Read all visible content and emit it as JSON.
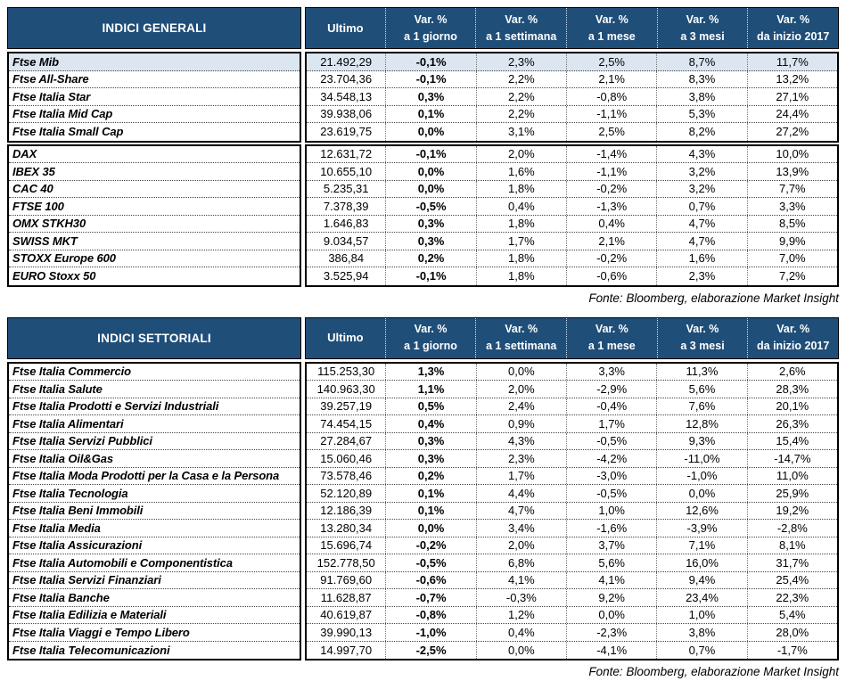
{
  "colors": {
    "header_bg": "#1F4E79",
    "header_text": "#FFFFFF",
    "highlight_row_bg": "#DCE6F1",
    "border": "#000000"
  },
  "columns": [
    {
      "key": "ultimo",
      "line1": "Ultimo",
      "line2": ""
    },
    {
      "key": "var-1-giorno",
      "line1": "Var. %",
      "line2": "a 1 giorno"
    },
    {
      "key": "var-1-settimana",
      "line1": "Var. %",
      "line2": "a 1 settimana"
    },
    {
      "key": "var-1-mese",
      "line1": "Var. %",
      "line2": "a 1 mese"
    },
    {
      "key": "var-3-mesi",
      "line1": "Var. %",
      "line2": "a 3 mesi"
    },
    {
      "key": "var-da-inizio-2017",
      "line1": "Var. %",
      "line2": "da inizio 2017"
    }
  ],
  "tables": [
    {
      "title": "INDICI GENERALI",
      "source": "Fonte: Bloomberg, elaborazione Market Insight",
      "groups": [
        {
          "rows": [
            {
              "label": "Ftse Mib",
              "highlight": true,
              "values": [
                "21.492,29",
                "-0,1%",
                "2,3%",
                "2,5%",
                "8,7%",
                "11,7%"
              ]
            },
            {
              "label": "Ftse All-Share",
              "values": [
                "23.704,36",
                "-0,1%",
                "2,2%",
                "2,1%",
                "8,3%",
                "13,2%"
              ]
            },
            {
              "label": "Ftse Italia Star",
              "values": [
                "34.548,13",
                "0,3%",
                "2,2%",
                "-0,8%",
                "3,8%",
                "27,1%"
              ]
            },
            {
              "label": "Ftse Italia Mid Cap",
              "values": [
                "39.938,06",
                "0,1%",
                "2,2%",
                "-1,1%",
                "5,3%",
                "24,4%"
              ]
            },
            {
              "label": "Ftse Italia Small Cap",
              "values": [
                "23.619,75",
                "0,0%",
                "3,1%",
                "2,5%",
                "8,2%",
                "27,2%"
              ]
            }
          ]
        },
        {
          "rows": [
            {
              "label": "DAX",
              "values": [
                "12.631,72",
                "-0,1%",
                "2,0%",
                "-1,4%",
                "4,3%",
                "10,0%"
              ]
            },
            {
              "label": "IBEX 35",
              "values": [
                "10.655,10",
                "0,0%",
                "1,6%",
                "-1,1%",
                "3,2%",
                "13,9%"
              ]
            },
            {
              "label": "CAC 40",
              "values": [
                "5.235,31",
                "0,0%",
                "1,8%",
                "-0,2%",
                "3,2%",
                "7,7%"
              ]
            },
            {
              "label": "FTSE 100",
              "values": [
                "7.378,39",
                "-0,5%",
                "0,4%",
                "-1,3%",
                "0,7%",
                "3,3%"
              ]
            },
            {
              "label": "OMX STKH30",
              "values": [
                "1.646,83",
                "0,3%",
                "1,8%",
                "0,4%",
                "4,7%",
                "8,5%"
              ]
            },
            {
              "label": "SWISS MKT",
              "values": [
                "9.034,57",
                "0,3%",
                "1,7%",
                "2,1%",
                "4,7%",
                "9,9%"
              ]
            },
            {
              "label": "STOXX Europe 600",
              "values": [
                "386,84",
                "0,2%",
                "1,8%",
                "-0,2%",
                "1,6%",
                "7,0%"
              ]
            },
            {
              "label": "EURO Stoxx 50",
              "values": [
                "3.525,94",
                "-0,1%",
                "1,8%",
                "-0,6%",
                "2,3%",
                "7,2%"
              ]
            }
          ]
        }
      ]
    },
    {
      "title": "INDICI SETTORIALI",
      "source": "Fonte: Bloomberg, elaborazione Market Insight",
      "groups": [
        {
          "rows": [
            {
              "label": "Ftse Italia Commercio",
              "values": [
                "115.253,30",
                "1,3%",
                "0,0%",
                "3,3%",
                "11,3%",
                "2,6%"
              ]
            },
            {
              "label": "Ftse Italia Salute",
              "values": [
                "140.963,30",
                "1,1%",
                "2,0%",
                "-2,9%",
                "5,6%",
                "28,3%"
              ]
            },
            {
              "label": "Ftse Italia Prodotti e Servizi Industriali",
              "values": [
                "39.257,19",
                "0,5%",
                "2,4%",
                "-0,4%",
                "7,6%",
                "20,1%"
              ]
            },
            {
              "label": "Ftse Italia Alimentari",
              "values": [
                "74.454,15",
                "0,4%",
                "0,9%",
                "1,7%",
                "12,8%",
                "26,3%"
              ]
            },
            {
              "label": "Ftse Italia Servizi Pubblici",
              "values": [
                "27.284,67",
                "0,3%",
                "4,3%",
                "-0,5%",
                "9,3%",
                "15,4%"
              ]
            },
            {
              "label": "Ftse Italia Oil&Gas",
              "values": [
                "15.060,46",
                "0,3%",
                "2,3%",
                "-4,2%",
                "-11,0%",
                "-14,7%"
              ]
            },
            {
              "label": "Ftse Italia Moda Prodotti per la Casa e la Persona",
              "values": [
                "73.578,46",
                "0,2%",
                "1,7%",
                "-3,0%",
                "-1,0%",
                "11,0%"
              ]
            },
            {
              "label": "Ftse Italia Tecnologia",
              "values": [
                "52.120,89",
                "0,1%",
                "4,4%",
                "-0,5%",
                "0,0%",
                "25,9%"
              ]
            },
            {
              "label": "Ftse Italia Beni Immobili",
              "values": [
                "12.186,39",
                "0,1%",
                "4,7%",
                "1,0%",
                "12,6%",
                "19,2%"
              ]
            },
            {
              "label": "Ftse Italia Media",
              "values": [
                "13.280,34",
                "0,0%",
                "3,4%",
                "-1,6%",
                "-3,9%",
                "-2,8%"
              ]
            },
            {
              "label": "Ftse Italia Assicurazioni",
              "values": [
                "15.696,74",
                "-0,2%",
                "2,0%",
                "3,7%",
                "7,1%",
                "8,1%"
              ]
            },
            {
              "label": "Ftse Italia Automobili e Componentistica",
              "values": [
                "152.778,50",
                "-0,5%",
                "6,8%",
                "5,6%",
                "16,0%",
                "31,7%"
              ]
            },
            {
              "label": "Ftse Italia Servizi Finanziari",
              "values": [
                "91.769,60",
                "-0,6%",
                "4,1%",
                "4,1%",
                "9,4%",
                "25,4%"
              ]
            },
            {
              "label": "Ftse Italia Banche",
              "values": [
                "11.628,87",
                "-0,7%",
                "-0,3%",
                "9,2%",
                "23,4%",
                "22,3%"
              ]
            },
            {
              "label": "Ftse Italia Edilizia e Materiali",
              "values": [
                "40.619,87",
                "-0,8%",
                "1,2%",
                "0,0%",
                "1,0%",
                "5,4%"
              ]
            },
            {
              "label": "Ftse Italia Viaggi e Tempo Libero",
              "values": [
                "39.990,13",
                "-1,0%",
                "0,4%",
                "-2,3%",
                "3,8%",
                "28,0%"
              ]
            },
            {
              "label": "Ftse Italia Telecomunicazioni",
              "values": [
                "14.997,70",
                "-2,5%",
                "0,0%",
                "-4,1%",
                "0,7%",
                "-1,7%"
              ]
            }
          ]
        }
      ]
    }
  ]
}
